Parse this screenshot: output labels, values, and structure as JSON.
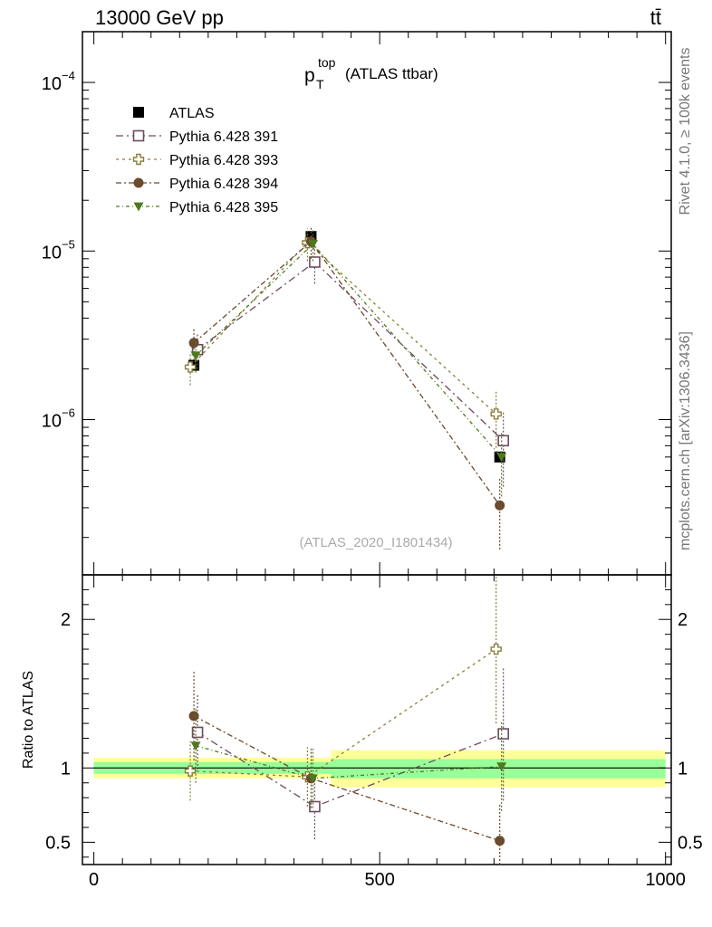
{
  "header": {
    "energy_label": "13000 GeV pp",
    "process_label": "tt̄"
  },
  "side_labels": {
    "rivet": "Rivet 4.1.0, ≥ 100k events",
    "mcplots": "mcplots.cern.ch [arXiv:1306.3436]"
  },
  "chart_data": [
    {
      "type": "scatter",
      "panel": "main",
      "title_main": "p",
      "title_sup": "top",
      "title_sub": "T",
      "title_rest": "(ATLAS ttbar)",
      "analysis_tag": "(ATLAS_2020_I1801434)",
      "yscale": "log",
      "ylim": [
        1.2e-07,
        0.0002
      ],
      "xlim": [
        -20,
        1010
      ],
      "y_tick_labels": [
        "10",
        "10",
        "10"
      ],
      "y_tick_exponents": [
        "−4",
        "−5",
        "−6"
      ],
      "y_tick_values": [
        0.0001,
        1e-05,
        1e-06
      ],
      "legend_position": "top-left",
      "series": [
        {
          "name": "ATLAS",
          "color": "#000000",
          "marker": "filled-square",
          "x": [
            175,
            380,
            710
          ],
          "y": [
            2.1e-06,
            1.22e-05,
            6e-07
          ],
          "err": [
            1e-07,
            6e-07,
            4e-08
          ]
        },
        {
          "name": "Pythia 6.428 391",
          "color": "#6e4b5e",
          "marker": "open-square",
          "x": [
            175,
            380,
            710
          ],
          "y": [
            2.6e-06,
            8.6e-06,
            7.5e-07
          ],
          "err": [
            6e-07,
            2.2e-06,
            3.5e-07
          ]
        },
        {
          "name": "Pythia 6.428 393",
          "color": "#8b7d3a",
          "marker": "open-cross",
          "x": [
            175,
            380,
            710
          ],
          "y": [
            2.05e-06,
            1.12e-05,
            1.08e-06
          ],
          "err": [
            4.5e-07,
            2.5e-06,
            4e-07
          ]
        },
        {
          "name": "Pythia 6.428 394",
          "color": "#6b4a2e",
          "marker": "filled-circle",
          "x": [
            175,
            380,
            710
          ],
          "y": [
            2.85e-06,
            1.14e-05,
            3.1e-07
          ],
          "err": [
            6e-07,
            2.4e-06,
            1.4e-07
          ]
        },
        {
          "name": "Pythia 6.428 395",
          "color": "#4e7a1e",
          "marker": "filled-triangle-down",
          "x": [
            175,
            380,
            710
          ],
          "y": [
            2.4e-06,
            1.1e-05,
            6e-07
          ],
          "err": [
            5e-07,
            2.3e-06,
            2.5e-07
          ]
        }
      ]
    },
    {
      "type": "scatter",
      "panel": "ratio",
      "ylabel": "Ratio to ATLAS",
      "ylim": [
        0.35,
        2.3
      ],
      "xlim": [
        -20,
        1010
      ],
      "y_tick_values": [
        0.5,
        1,
        2
      ],
      "y_tick_labels": [
        "0.5",
        "1",
        "2"
      ],
      "x_tick_values": [
        0,
        500,
        1000
      ],
      "x_tick_labels": [
        "0",
        "500",
        "1000"
      ],
      "bands": [
        {
          "x": [
            0,
            415
          ],
          "yellow": [
            0.93,
            1.07
          ],
          "green": [
            0.96,
            1.04
          ]
        },
        {
          "x": [
            415,
            1000
          ],
          "yellow": [
            0.87,
            1.12
          ],
          "green": [
            0.93,
            1.06
          ]
        }
      ],
      "series": [
        {
          "name": "Pythia 6.428 391",
          "x": [
            175,
            380,
            710
          ],
          "y": [
            1.24,
            0.74,
            1.23
          ],
          "err": [
            0.25,
            0.22,
            0.45
          ]
        },
        {
          "name": "Pythia 6.428 393",
          "x": [
            175,
            380,
            710
          ],
          "y": [
            0.98,
            0.94,
            1.8
          ],
          "err": [
            0.2,
            0.2,
            0.5
          ]
        },
        {
          "name": "Pythia 6.428 394",
          "x": [
            175,
            380,
            710
          ],
          "y": [
            1.35,
            0.93,
            0.51
          ],
          "err": [
            0.3,
            0.2,
            0.25
          ]
        },
        {
          "name": "Pythia 6.428 395",
          "x": [
            175,
            380,
            710
          ],
          "y": [
            1.15,
            0.93,
            1.01
          ],
          "err": [
            0.25,
            0.2,
            0.3
          ]
        }
      ]
    }
  ]
}
